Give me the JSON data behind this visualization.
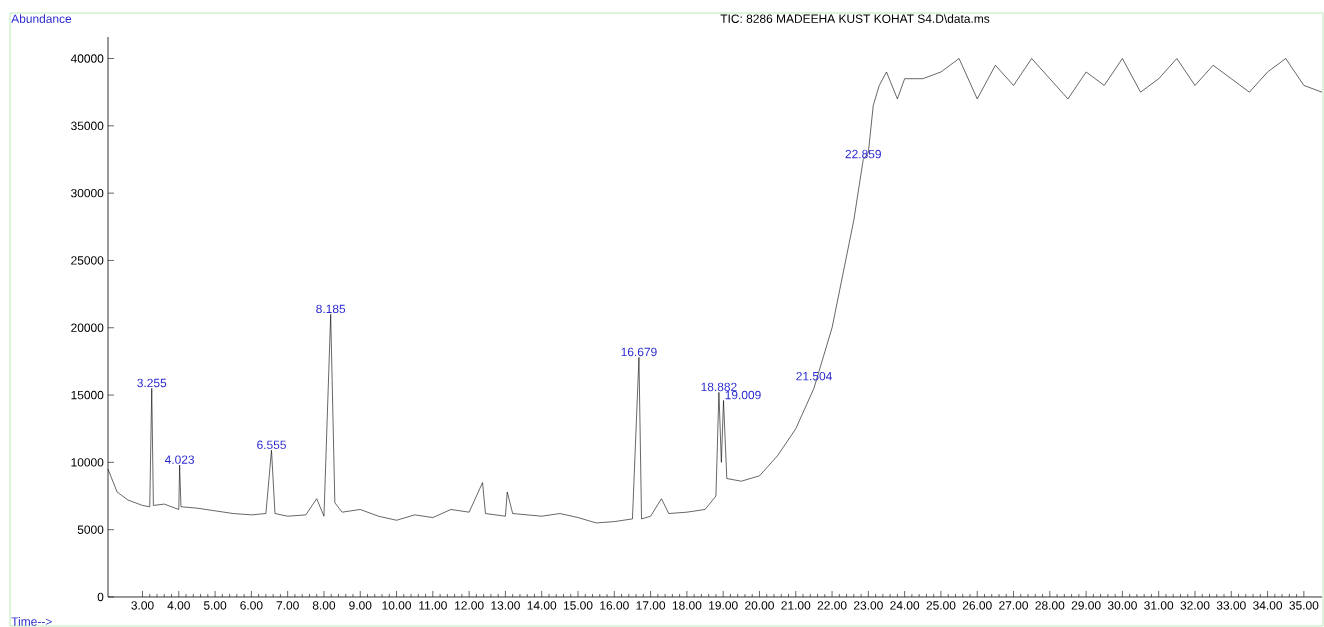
{
  "chart_data": {
    "type": "line",
    "title": "TIC: 8286 MADEEHA KUST KOHAT S4.D\\data.ms",
    "xlabel": "Time-->",
    "ylabel": "Abundance",
    "color": "#000000",
    "x": [
      2.05,
      2.3,
      2.6,
      3.0,
      3.2,
      3.255,
      3.3,
      3.6,
      4.0,
      4.023,
      4.06,
      4.5,
      5.0,
      5.5,
      6.0,
      6.4,
      6.555,
      6.65,
      7.0,
      7.5,
      7.8,
      8.0,
      8.185,
      8.3,
      8.5,
      9.0,
      9.5,
      10.0,
      10.5,
      11.0,
      11.5,
      12.0,
      12.37,
      12.45,
      13.0,
      13.05,
      13.2,
      14.0,
      14.5,
      15.0,
      15.5,
      16.0,
      16.5,
      16.679,
      16.75,
      17.0,
      17.3,
      17.5,
      18.0,
      18.5,
      18.8,
      18.882,
      18.95,
      19.009,
      19.1,
      19.5,
      20.0,
      20.5,
      21.0,
      21.5,
      22.0,
      22.3,
      22.6,
      22.859,
      23.0,
      23.134,
      23.3,
      23.5,
      23.8,
      24.0,
      24.5,
      25.0,
      25.5,
      26.0,
      26.5,
      27.0,
      27.5,
      28.0,
      28.5,
      29.0,
      29.5,
      30.0,
      30.5,
      31.0,
      31.5,
      32.0,
      32.5,
      33.0,
      33.5,
      34.0,
      34.5,
      35.0,
      35.5
    ],
    "values": [
      9500,
      7800,
      7200,
      6800,
      6700,
      15500,
      6800,
      6900,
      6500,
      9800,
      6700,
      6600,
      6400,
      6200,
      6100,
      6200,
      10900,
      6200,
      6000,
      6100,
      7300,
      6000,
      21000,
      7000,
      6300,
      6500,
      6000,
      5700,
      6100,
      5900,
      6500,
      6300,
      8500,
      6200,
      6000,
      7800,
      6200,
      6000,
      6200,
      5900,
      5500,
      5600,
      5800,
      17800,
      5800,
      6000,
      7300,
      6200,
      6300,
      6500,
      7500,
      15200,
      10000,
      14600,
      8800,
      8600,
      9000,
      10500,
      12500,
      15500,
      20000,
      24000,
      28000,
      32500,
      33000,
      36500,
      38000,
      39000,
      37000,
      38500,
      38500,
      39000,
      40000,
      37000,
      39500,
      38000,
      40000,
      38500,
      37000,
      39000,
      38000,
      40000,
      37500,
      38500,
      40000,
      38000,
      39500,
      38500,
      37500,
      39000,
      40000,
      38000,
      37500
    ],
    "xlim": [
      2.05,
      35.5
    ],
    "ylim": [
      0,
      41600
    ],
    "xticks": [
      {
        "value": 3,
        "label": "3.00"
      },
      {
        "value": 4,
        "label": "4.00"
      },
      {
        "value": 5,
        "label": "5.00"
      },
      {
        "value": 6,
        "label": "6.00"
      },
      {
        "value": 7,
        "label": "7.00"
      },
      {
        "value": 8,
        "label": "8.00"
      },
      {
        "value": 9,
        "label": "9.00"
      },
      {
        "value": 10,
        "label": "10.00"
      },
      {
        "value": 11,
        "label": "11.00"
      },
      {
        "value": 12,
        "label": "12.00"
      },
      {
        "value": 13,
        "label": "13.00"
      },
      {
        "value": 14,
        "label": "14.00"
      },
      {
        "value": 15,
        "label": "15.00"
      },
      {
        "value": 16,
        "label": "16.00"
      },
      {
        "value": 17,
        "label": "17.00"
      },
      {
        "value": 18,
        "label": "18.00"
      },
      {
        "value": 19,
        "label": "19.00"
      },
      {
        "value": 20,
        "label": "20.00"
      },
      {
        "value": 21,
        "label": "21.00"
      },
      {
        "value": 22,
        "label": "22.00"
      },
      {
        "value": 23,
        "label": "23.00"
      },
      {
        "value": 24,
        "label": "24.00"
      },
      {
        "value": 25,
        "label": "25.00"
      },
      {
        "value": 26,
        "label": "26.00"
      },
      {
        "value": 27,
        "label": "27.00"
      },
      {
        "value": 28,
        "label": "28.00"
      },
      {
        "value": 29,
        "label": "29.00"
      },
      {
        "value": 30,
        "label": "30.00"
      },
      {
        "value": 31,
        "label": "31.00"
      },
      {
        "value": 32,
        "label": "32.00"
      },
      {
        "value": 33,
        "label": "33.00"
      },
      {
        "value": 34,
        "label": "34.00"
      },
      {
        "value": 35,
        "label": "35.00"
      }
    ],
    "yticks": [
      0,
      5000,
      10000,
      15000,
      20000,
      25000,
      30000,
      35000,
      40000
    ],
    "annotations": [
      {
        "text": "3.255",
        "x": 3.255,
        "y": 15500
      },
      {
        "text": "4.023",
        "x": 4.023,
        "y": 9800
      },
      {
        "text": "6.555",
        "x": 6.555,
        "y": 10900
      },
      {
        "text": "8.185",
        "x": 8.185,
        "y": 21000
      },
      {
        "text": "16.679",
        "x": 16.679,
        "y": 17800
      },
      {
        "text": "18.882",
        "x": 18.882,
        "y": 15200
      },
      {
        "text": "19.009",
        "x": 19.009,
        "y": 14600
      },
      {
        "text": "21.504",
        "x": 21.504,
        "y": 16000
      },
      {
        "text": "22.859",
        "x": 22.859,
        "y": 32500
      }
    ]
  }
}
